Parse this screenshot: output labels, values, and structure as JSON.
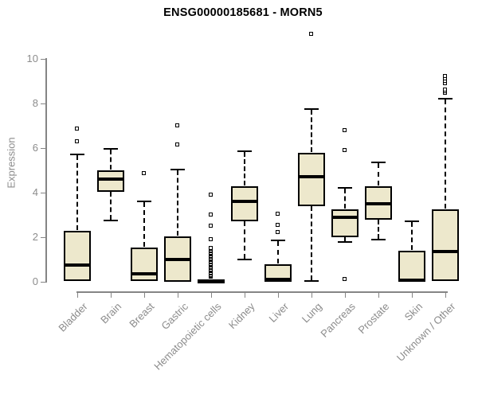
{
  "chart_data": {
    "type": "boxplot",
    "title": "ENSG00000185681 - MORN5",
    "ylabel": "Expression",
    "ylim": [
      0,
      10
    ],
    "yticks": [
      0,
      2,
      4,
      6,
      8,
      10
    ],
    "grid": false,
    "categories": [
      "Bladder",
      "Brain",
      "Breast",
      "Gastric",
      "Hematopoietic cells",
      "Kidney",
      "Liver",
      "Lung",
      "Pancreas",
      "Prostate",
      "Skin",
      "Unknown / Other"
    ],
    "series": [
      {
        "name": "Bladder",
        "low": 0.05,
        "q1": 0.05,
        "median": 0.75,
        "q3": 2.3,
        "high": 5.7,
        "outliers": [
          6.3,
          6.85
        ]
      },
      {
        "name": "Brain",
        "low": 2.75,
        "q1": 4.05,
        "median": 4.6,
        "q3": 5.0,
        "high": 5.95,
        "outliers": []
      },
      {
        "name": "Breast",
        "low": 0.05,
        "q1": 0.05,
        "median": 0.35,
        "q3": 1.55,
        "high": 3.6,
        "outliers": [
          4.85
        ]
      },
      {
        "name": "Gastric",
        "low": 0.0,
        "q1": 0.0,
        "median": 1.0,
        "q3": 2.05,
        "high": 5.05,
        "outliers": [
          6.15,
          7.0
        ]
      },
      {
        "name": "Hematopoietic cells",
        "low": 0.0,
        "q1": 0.0,
        "median": 0.02,
        "q3": 0.06,
        "high": 0.1,
        "outliers": [
          0.2,
          0.25,
          0.3,
          0.35,
          0.4,
          0.45,
          0.5,
          0.55,
          0.6,
          0.65,
          0.7,
          0.75,
          0.8,
          0.85,
          0.9,
          0.95,
          1.0,
          1.05,
          1.1,
          1.15,
          1.2,
          1.25,
          1.3,
          1.35,
          1.4,
          1.45,
          1.5,
          1.9,
          2.5,
          3.0,
          3.9
        ]
      },
      {
        "name": "Kidney",
        "low": 1.0,
        "q1": 2.7,
        "median": 3.6,
        "q3": 4.3,
        "high": 5.85,
        "outliers": []
      },
      {
        "name": "Liver",
        "low": 0.0,
        "q1": 0.0,
        "median": 0.1,
        "q3": 0.8,
        "high": 1.85,
        "outliers": [
          2.2,
          2.55,
          3.05
        ]
      },
      {
        "name": "Lung",
        "low": 0.05,
        "q1": 3.4,
        "median": 4.7,
        "q3": 5.8,
        "high": 7.75,
        "outliers": [
          11.1
        ]
      },
      {
        "name": "Pancreas",
        "low": 1.8,
        "q1": 2.0,
        "median": 2.9,
        "q3": 3.25,
        "high": 4.2,
        "outliers": [
          0.1,
          5.9,
          6.8
        ]
      },
      {
        "name": "Prostate",
        "low": 1.9,
        "q1": 2.8,
        "median": 3.5,
        "q3": 4.3,
        "high": 5.35,
        "outliers": []
      },
      {
        "name": "Skin",
        "low": 0.0,
        "q1": 0.0,
        "median": 0.07,
        "q3": 1.4,
        "high": 2.7,
        "outliers": []
      },
      {
        "name": "Unknown / Other",
        "low": 0.05,
        "q1": 0.05,
        "median": 1.35,
        "q3": 3.25,
        "high": 8.2,
        "outliers": [
          8.45,
          8.55,
          8.6,
          8.9,
          9.0,
          9.1,
          9.2
        ]
      }
    ],
    "style": {
      "box_fill": "#EDE8CC",
      "box_border": "#000000",
      "median_color": "#000000",
      "axis_color": "#858585",
      "label_color": "#8C8C8C",
      "title_color": "#000000",
      "background": "#FFFFFF"
    }
  }
}
